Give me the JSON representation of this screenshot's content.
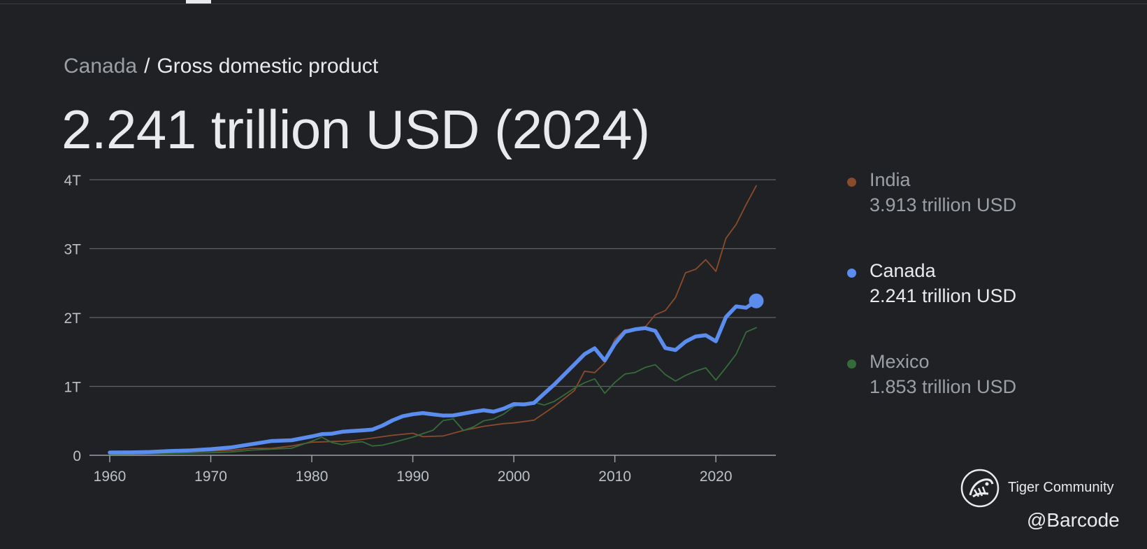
{
  "breadcrumb": {
    "country": "Canada",
    "separator": "/",
    "metric": "Gross domestic product"
  },
  "headline": "2.241 trillion USD (2024)",
  "legend": [
    {
      "name": "India",
      "value": "3.913 trillion USD",
      "color": "#8a4b2c"
    },
    {
      "name": "Canada",
      "value": "2.241 trillion USD",
      "color": "#5b8def"
    },
    {
      "name": "Mexico",
      "value": "1.853 trillion USD",
      "color": "#356b3a"
    }
  ],
  "watermark": {
    "brand": "Tiger Community",
    "credit": "@Barcode"
  },
  "chart_data": {
    "type": "line",
    "title": "Canada / Gross domestic product",
    "xlabel": "",
    "ylabel": "",
    "xlim": [
      1960,
      2025
    ],
    "ylim": [
      0,
      4
    ],
    "x_ticks": [
      1960,
      1970,
      1980,
      1990,
      2000,
      2010,
      2020
    ],
    "y_ticks": [
      0,
      1,
      2,
      3,
      4
    ],
    "y_tick_labels": [
      "0",
      "1T",
      "2T",
      "3T",
      "4T"
    ],
    "units": "trillion USD",
    "grid": true,
    "legend_position": "right",
    "highlight_series": "Canada",
    "series": [
      {
        "name": "India",
        "color": "#8a4b2c",
        "points": [
          [
            1960,
            0.037
          ],
          [
            1962,
            0.043
          ],
          [
            1964,
            0.056
          ],
          [
            1966,
            0.046
          ],
          [
            1968,
            0.055
          ],
          [
            1970,
            0.063
          ],
          [
            1972,
            0.071
          ],
          [
            1974,
            0.1
          ],
          [
            1976,
            0.1
          ],
          [
            1978,
            0.135
          ],
          [
            1980,
            0.19
          ],
          [
            1982,
            0.2
          ],
          [
            1984,
            0.21
          ],
          [
            1986,
            0.25
          ],
          [
            1988,
            0.29
          ],
          [
            1990,
            0.32
          ],
          [
            1991,
            0.27
          ],
          [
            1993,
            0.28
          ],
          [
            1995,
            0.36
          ],
          [
            1997,
            0.42
          ],
          [
            1999,
            0.46
          ],
          [
            2000,
            0.47
          ],
          [
            2002,
            0.51
          ],
          [
            2004,
            0.71
          ],
          [
            2006,
            0.94
          ],
          [
            2007,
            1.22
          ],
          [
            2008,
            1.2
          ],
          [
            2009,
            1.34
          ],
          [
            2010,
            1.68
          ],
          [
            2011,
            1.82
          ],
          [
            2012,
            1.83
          ],
          [
            2013,
            1.86
          ],
          [
            2014,
            2.04
          ],
          [
            2015,
            2.1
          ],
          [
            2016,
            2.29
          ],
          [
            2017,
            2.65
          ],
          [
            2018,
            2.7
          ],
          [
            2019,
            2.84
          ],
          [
            2020,
            2.67
          ],
          [
            2021,
            3.15
          ],
          [
            2022,
            3.35
          ],
          [
            2023,
            3.64
          ],
          [
            2024,
            3.913
          ]
        ]
      },
      {
        "name": "Canada",
        "color": "#5b8def",
        "points": [
          [
            1960,
            0.041
          ],
          [
            1962,
            0.042
          ],
          [
            1964,
            0.048
          ],
          [
            1966,
            0.062
          ],
          [
            1968,
            0.071
          ],
          [
            1970,
            0.088
          ],
          [
            1972,
            0.114
          ],
          [
            1974,
            0.16
          ],
          [
            1976,
            0.207
          ],
          [
            1978,
            0.218
          ],
          [
            1980,
            0.274
          ],
          [
            1981,
            0.307
          ],
          [
            1982,
            0.314
          ],
          [
            1983,
            0.341
          ],
          [
            1984,
            0.352
          ],
          [
            1985,
            0.361
          ],
          [
            1986,
            0.374
          ],
          [
            1987,
            0.431
          ],
          [
            1988,
            0.508
          ],
          [
            1989,
            0.566
          ],
          [
            1990,
            0.596
          ],
          [
            1991,
            0.613
          ],
          [
            1992,
            0.594
          ],
          [
            1993,
            0.577
          ],
          [
            1994,
            0.579
          ],
          [
            1995,
            0.605
          ],
          [
            1996,
            0.631
          ],
          [
            1997,
            0.654
          ],
          [
            1998,
            0.634
          ],
          [
            1999,
            0.678
          ],
          [
            2000,
            0.744
          ],
          [
            2001,
            0.738
          ],
          [
            2002,
            0.76
          ],
          [
            2003,
            0.895
          ],
          [
            2004,
            1.026
          ],
          [
            2005,
            1.174
          ],
          [
            2006,
            1.319
          ],
          [
            2007,
            1.468
          ],
          [
            2008,
            1.553
          ],
          [
            2009,
            1.376
          ],
          [
            2010,
            1.617
          ],
          [
            2011,
            1.793
          ],
          [
            2012,
            1.828
          ],
          [
            2013,
            1.847
          ],
          [
            2014,
            1.806
          ],
          [
            2015,
            1.556
          ],
          [
            2016,
            1.528
          ],
          [
            2017,
            1.65
          ],
          [
            2018,
            1.725
          ],
          [
            2019,
            1.742
          ],
          [
            2020,
            1.655
          ],
          [
            2021,
            2.007
          ],
          [
            2022,
            2.161
          ],
          [
            2023,
            2.142
          ],
          [
            2024,
            2.241
          ]
        ]
      },
      {
        "name": "Mexico",
        "color": "#356b3a",
        "points": [
          [
            1960,
            0.013
          ],
          [
            1962,
            0.016
          ],
          [
            1964,
            0.021
          ],
          [
            1966,
            0.026
          ],
          [
            1968,
            0.032
          ],
          [
            1970,
            0.038
          ],
          [
            1972,
            0.048
          ],
          [
            1974,
            0.075
          ],
          [
            1976,
            0.089
          ],
          [
            1978,
            0.103
          ],
          [
            1980,
            0.205
          ],
          [
            1981,
            0.262
          ],
          [
            1982,
            0.185
          ],
          [
            1983,
            0.155
          ],
          [
            1984,
            0.185
          ],
          [
            1985,
            0.197
          ],
          [
            1986,
            0.135
          ],
          [
            1987,
            0.147
          ],
          [
            1988,
            0.183
          ],
          [
            1989,
            0.223
          ],
          [
            1990,
            0.263
          ],
          [
            1991,
            0.315
          ],
          [
            1992,
            0.364
          ],
          [
            1993,
            0.504
          ],
          [
            1994,
            0.529
          ],
          [
            1995,
            0.36
          ],
          [
            1996,
            0.411
          ],
          [
            1997,
            0.5
          ],
          [
            1998,
            0.527
          ],
          [
            1999,
            0.6
          ],
          [
            2000,
            0.708
          ],
          [
            2001,
            0.756
          ],
          [
            2002,
            0.772
          ],
          [
            2003,
            0.729
          ],
          [
            2004,
            0.782
          ],
          [
            2005,
            0.877
          ],
          [
            2006,
            0.975
          ],
          [
            2007,
            1.053
          ],
          [
            2008,
            1.11
          ],
          [
            2009,
            0.9
          ],
          [
            2010,
            1.058
          ],
          [
            2011,
            1.18
          ],
          [
            2012,
            1.202
          ],
          [
            2013,
            1.275
          ],
          [
            2014,
            1.315
          ],
          [
            2015,
            1.172
          ],
          [
            2016,
            1.078
          ],
          [
            2017,
            1.159
          ],
          [
            2018,
            1.222
          ],
          [
            2019,
            1.269
          ],
          [
            2020,
            1.091
          ],
          [
            2021,
            1.273
          ],
          [
            2022,
            1.466
          ],
          [
            2023,
            1.789
          ],
          [
            2024,
            1.853
          ]
        ]
      }
    ]
  }
}
